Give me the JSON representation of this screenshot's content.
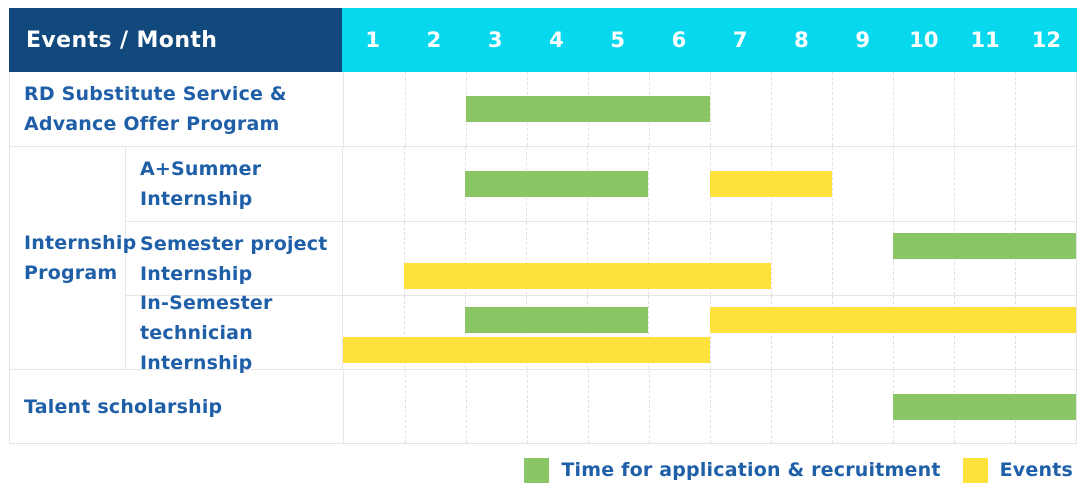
{
  "header": {
    "title": "Events / Month",
    "months": [
      "1",
      "2",
      "3",
      "4",
      "5",
      "6",
      "7",
      "8",
      "9",
      "10",
      "11",
      "12"
    ]
  },
  "rows": [
    {
      "type": "single",
      "label": "RD Substitute Service & Advance Offer Program",
      "label_lines": [
        "RD Substitute Service &",
        "Advance Offer Program"
      ],
      "bars": [
        {
          "color": "green",
          "start": 3,
          "end": 6,
          "line": "center"
        }
      ]
    },
    {
      "type": "group",
      "label": "Internship Program",
      "label_lines": [
        "Internship",
        "Program"
      ],
      "subrows": [
        {
          "label": "A+Summer Internship",
          "label_lines": [
            "A+Summer",
            "Internship"
          ],
          "bars": [
            {
              "color": "green",
              "start": 3,
              "end": 5,
              "line": "center"
            },
            {
              "color": "yellow",
              "start": 7,
              "end": 8,
              "line": "center"
            }
          ]
        },
        {
          "label": "Semester project Internship",
          "label_lines": [
            "Semester project",
            "Internship"
          ],
          "bars": [
            {
              "color": "green",
              "start": 10,
              "end": 12,
              "line": "top"
            },
            {
              "color": "yellow",
              "start": 2,
              "end": 7,
              "line": "bottom"
            }
          ]
        },
        {
          "label": "In-Semester technician Internship",
          "label_lines": [
            "In-Semester",
            "technician Internship"
          ],
          "bars": [
            {
              "color": "green",
              "start": 3,
              "end": 5,
              "line": "top"
            },
            {
              "color": "yellow",
              "start": 7,
              "end": 12,
              "line": "top"
            },
            {
              "color": "yellow",
              "start": 1,
              "end": 6,
              "line": "bottom"
            }
          ]
        }
      ]
    },
    {
      "type": "single",
      "label": "Talent scholarship",
      "label_lines": [
        "Talent scholarship"
      ],
      "bars": [
        {
          "color": "green",
          "start": 10,
          "end": 12,
          "line": "center"
        }
      ]
    }
  ],
  "legend": {
    "items": [
      {
        "color": "green",
        "label": "Time for application & recruitment"
      },
      {
        "color": "yellow",
        "label": "Events"
      }
    ]
  },
  "colors": {
    "navy": "#11497D",
    "cyan": "#08D8EE",
    "green": "#8AC566",
    "yellow": "#FDE23C",
    "text_blue": "#1E5FA8",
    "grid_line": "#E6E6E6"
  },
  "chart_data": {
    "type": "table",
    "title": "Events / Month",
    "x": [
      1,
      2,
      3,
      4,
      5,
      6,
      7,
      8,
      9,
      10,
      11,
      12
    ],
    "xlabel": "Month",
    "legend_position": "bottom-right",
    "grid": true,
    "rows": [
      {
        "event": "RD Substitute Service & Advance Offer Program",
        "group": null,
        "application_recruitment_month_ranges": [
          [
            3,
            6
          ]
        ],
        "event_month_ranges": []
      },
      {
        "event": "A+Summer Internship",
        "group": "Internship Program",
        "application_recruitment_month_ranges": [
          [
            3,
            5
          ]
        ],
        "event_month_ranges": [
          [
            7,
            8
          ]
        ]
      },
      {
        "event": "Semester project Internship",
        "group": "Internship Program",
        "application_recruitment_month_ranges": [
          [
            10,
            12
          ]
        ],
        "event_month_ranges": [
          [
            2,
            7
          ]
        ]
      },
      {
        "event": "In-Semester technician Internship",
        "group": "Internship Program",
        "application_recruitment_month_ranges": [
          [
            3,
            5
          ]
        ],
        "event_month_ranges": [
          [
            1,
            6
          ],
          [
            7,
            12
          ]
        ]
      },
      {
        "event": "Talent scholarship",
        "group": null,
        "application_recruitment_month_ranges": [
          [
            10,
            12
          ]
        ],
        "event_month_ranges": []
      }
    ],
    "legend_entries": [
      "Time for application & recruitment",
      "Events"
    ]
  }
}
